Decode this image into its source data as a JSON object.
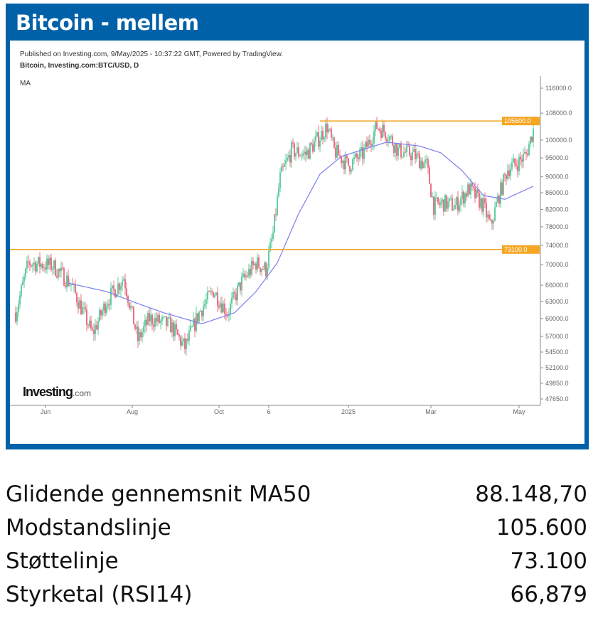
{
  "header": {
    "title": "Bitcoin - mellem"
  },
  "chart_meta": {
    "published": "Published on Investing.com, 9/May/2025 - 10:37:22 GMT, Powered by TradingView.",
    "symbol": "Bitcoin, Investing.com:BTC/USD, D",
    "indicator": "MA",
    "logo_main": "Investing",
    "logo_suffix": ".com"
  },
  "chart_data": {
    "type": "candlestick",
    "title": "Bitcoin, Investing.com:BTC/USD, D",
    "scale": "log",
    "ylim": [
      47650,
      116000
    ],
    "y_ticks": [
      "116000.0",
      "108000.0",
      "100000.0",
      "95000.0",
      "90000.0",
      "86000.0",
      "82000.0",
      "78000.0",
      "74000.0",
      "70000.0",
      "66000.0",
      "63000.0",
      "60000.0",
      "57000.0",
      "54500.0",
      "52100.0",
      "49850.0",
      "47650.0"
    ],
    "x_ticks": [
      {
        "label": "Jun",
        "day": 21
      },
      {
        "label": "Aug",
        "day": 82
      },
      {
        "label": "Oct",
        "day": 143
      },
      {
        "label": "6",
        "day": 178
      },
      {
        "label": "2025",
        "day": 234
      },
      {
        "label": "Mar",
        "day": 292
      },
      {
        "label": "May",
        "day": 354
      }
    ],
    "x_range_days": [
      0,
      364
    ],
    "close_path": [
      [
        0,
        61000
      ],
      [
        9,
        70350
      ],
      [
        26,
        69800
      ],
      [
        39,
        66200
      ],
      [
        54,
        57400
      ],
      [
        64,
        63000
      ],
      [
        76,
        67500
      ],
      [
        86,
        56400
      ],
      [
        94,
        60000
      ],
      [
        109,
        58800
      ],
      [
        119,
        55200
      ],
      [
        129,
        61000
      ],
      [
        139,
        65000
      ],
      [
        149,
        61000
      ],
      [
        159,
        66600
      ],
      [
        169,
        70350
      ],
      [
        176,
        69000
      ],
      [
        181,
        76400
      ],
      [
        186,
        89800
      ],
      [
        194,
        97000
      ],
      [
        204,
        96000
      ],
      [
        214,
        101000
      ],
      [
        219,
        104000
      ],
      [
        224,
        97000
      ],
      [
        234,
        93000
      ],
      [
        244,
        96000
      ],
      [
        254,
        104000
      ],
      [
        261,
        102000
      ],
      [
        269,
        97000
      ],
      [
        279,
        96000
      ],
      [
        289,
        93000
      ],
      [
        294,
        82800
      ],
      [
        301,
        83500
      ],
      [
        309,
        82800
      ],
      [
        319,
        87000
      ],
      [
        329,
        82800
      ],
      [
        334,
        78000
      ],
      [
        339,
        84300
      ],
      [
        346,
        92100
      ],
      [
        354,
        94000
      ],
      [
        359,
        96000
      ],
      [
        364,
        103000
      ]
    ],
    "ma50_path": [
      [
        37,
        66400
      ],
      [
        64,
        64800
      ],
      [
        84,
        62800
      ],
      [
        104,
        61000
      ],
      [
        131,
        59100
      ],
      [
        154,
        61000
      ],
      [
        169,
        64800
      ],
      [
        184,
        70350
      ],
      [
        199,
        81000
      ],
      [
        214,
        90700
      ],
      [
        229,
        95400
      ],
      [
        244,
        97300
      ],
      [
        261,
        99400
      ],
      [
        284,
        98300
      ],
      [
        299,
        96400
      ],
      [
        314,
        91600
      ],
      [
        329,
        85300
      ],
      [
        344,
        84400
      ],
      [
        364,
        87600
      ]
    ],
    "horizontal_lines": [
      {
        "name": "Modstandslinje",
        "value": 105600,
        "label": "105600.0",
        "color": "#f5a623"
      },
      {
        "name": "Støttelinje",
        "value": 73100,
        "label": "73100.0",
        "color": "#f5a623"
      }
    ],
    "colors": {
      "up": "#3fbf8a",
      "down": "#e8506a",
      "ma": "#7b7ef0"
    }
  },
  "stats": [
    {
      "label": "Glidende gennemsnit MA50",
      "value": "88.148,70"
    },
    {
      "label": "Modstandslinje",
      "value": "105.600"
    },
    {
      "label": "Støttelinje",
      "value": "73.100"
    },
    {
      "label": "Styrketal (RSI14)",
      "value": "66,879"
    }
  ]
}
